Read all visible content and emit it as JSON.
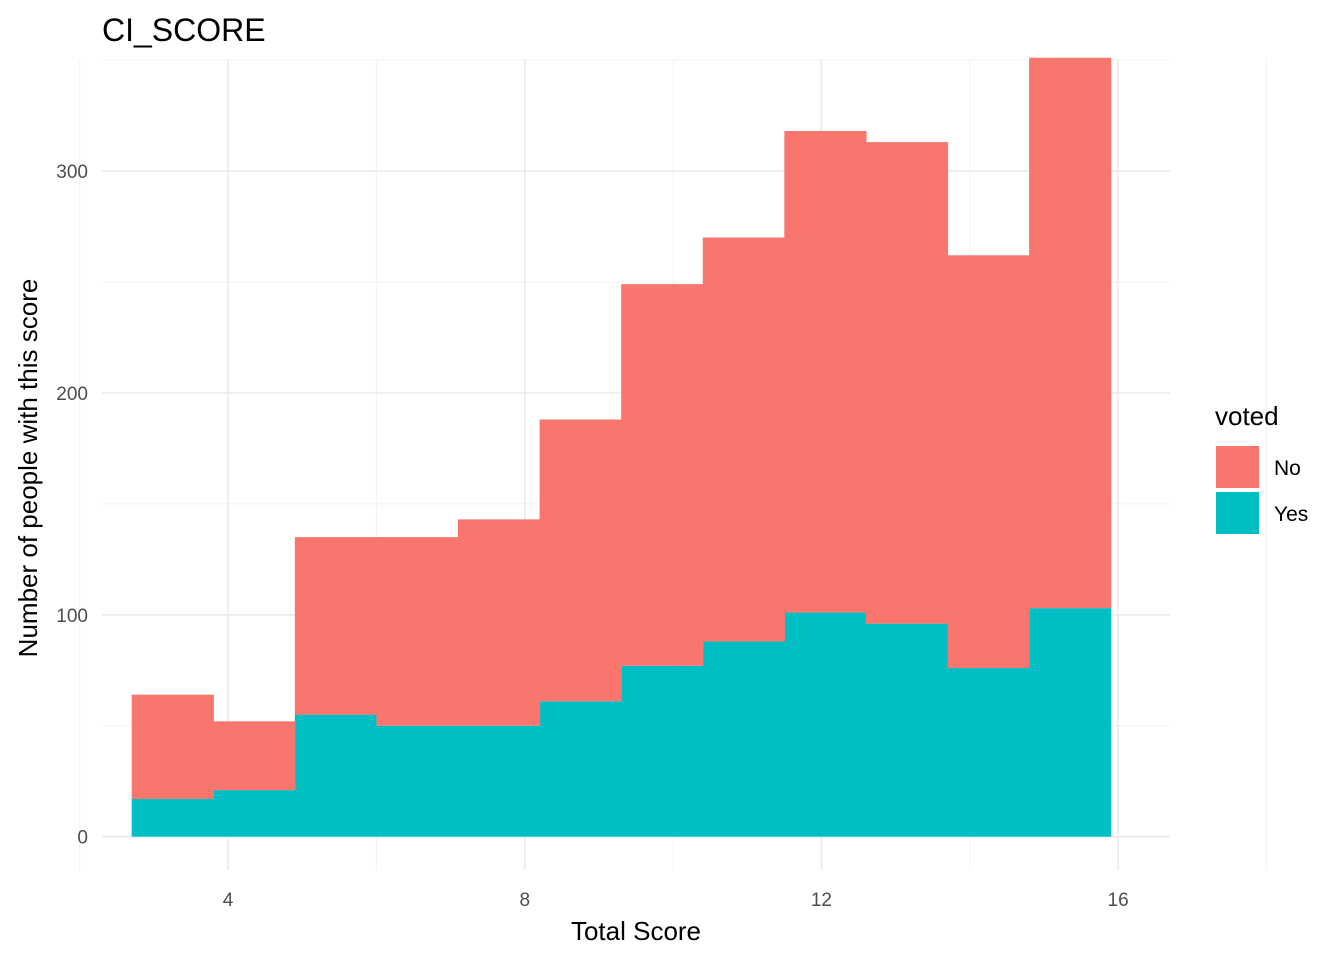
{
  "chart_data": {
    "type": "bar",
    "stacked": true,
    "histogram": true,
    "title": "CI_SCORE",
    "xlabel": "Total Score",
    "ylabel": "Number of people with this score",
    "xlim": [
      2.3,
      16.7
    ],
    "ylim": [
      -15,
      350
    ],
    "x_ticks": [
      4,
      8,
      12,
      16
    ],
    "x_tick_labels": [
      "4",
      "8",
      "12",
      "16"
    ],
    "y_ticks": [
      0,
      100,
      200,
      300
    ],
    "y_tick_labels": [
      "0",
      "100",
      "200",
      "300"
    ],
    "grid": true,
    "legend": {
      "title": "voted",
      "position": "right",
      "entries": [
        {
          "label": "No",
          "color": "#F8766D"
        },
        {
          "label": "Yes",
          "color": "#00BFC4"
        }
      ]
    },
    "bins": [
      [
        2.7,
        3.8
      ],
      [
        3.8,
        4.9
      ],
      [
        4.9,
        6.0
      ],
      [
        6.0,
        7.1
      ],
      [
        7.1,
        8.2
      ],
      [
        8.2,
        9.3
      ],
      [
        9.3,
        10.4
      ],
      [
        10.4,
        11.5
      ],
      [
        11.5,
        12.6
      ],
      [
        12.6,
        13.7
      ],
      [
        13.7,
        14.8
      ],
      [
        14.8,
        15.9
      ]
    ],
    "series": [
      {
        "name": "Yes",
        "color": "#00BFC4",
        "values": [
          17,
          21,
          55,
          50,
          50,
          61,
          77,
          88,
          101,
          96,
          76,
          103
        ]
      },
      {
        "name": "No",
        "color": "#F8766D",
        "values": [
          47,
          31,
          80,
          85,
          93,
          127,
          172,
          182,
          217,
          217,
          186,
          248
        ]
      }
    ]
  }
}
